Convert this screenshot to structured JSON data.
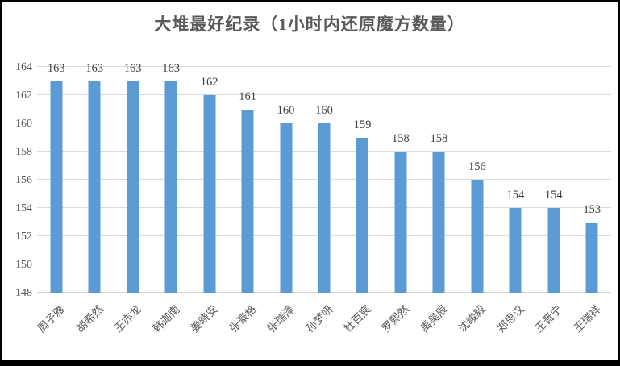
{
  "chart_data": {
    "type": "bar",
    "title": "大堆最好纪录（1小时内还原魔方数量）",
    "categories": [
      "周子雅",
      "胡希然",
      "王亦龙",
      "韩迦南",
      "姜晓安",
      "张豪格",
      "张瑞泽",
      "孙梦妍",
      "杜百宸",
      "罗熙然",
      "禹昊辰",
      "沈峻毅",
      "郑思汉",
      "王晋宁",
      "王瑞祥"
    ],
    "values": [
      163,
      163,
      163,
      163,
      162,
      161,
      160,
      160,
      159,
      158,
      158,
      156,
      154,
      154,
      153
    ],
    "xlabel": "",
    "ylabel": "",
    "ylim": [
      148,
      164
    ],
    "yticks": [
      148,
      150,
      152,
      154,
      156,
      158,
      160,
      162,
      164
    ],
    "grid": true,
    "legend": "none",
    "data_labels": true
  },
  "colors": {
    "bar": "#5b9bd5",
    "grid": "#d9d9d9",
    "axis_text": "#595959",
    "title_text": "#595959",
    "value_text": "#404040",
    "frame_border": "#000000",
    "background": "#ffffff"
  }
}
